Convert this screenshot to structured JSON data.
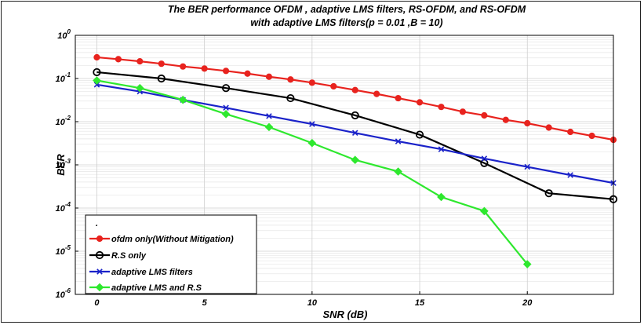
{
  "chart_data": {
    "type": "line",
    "title": [
      "The BER performance OFDM , adaptive LMS filters, RS-OFDM, and RS-OFDM",
      "with adaptive LMS filters(p = 0.01 ,B = 10)"
    ],
    "xlabel": "SNR (dB)",
    "ylabel": "BER",
    "xlim": [
      -1,
      24
    ],
    "ylim": [
      1e-06,
      1
    ],
    "yscale": "log",
    "grid": true,
    "legend_position": "lower-left",
    "xticks": [
      0,
      5,
      10,
      15,
      20
    ],
    "yticks": [
      {
        "base": "10",
        "exp": "0",
        "value": 1
      },
      {
        "base": "10",
        "exp": "-1",
        "value": 0.1
      },
      {
        "base": "10",
        "exp": "-2",
        "value": 0.01
      },
      {
        "base": "10",
        "exp": "-3",
        "value": 0.001
      },
      {
        "base": "10",
        "exp": "-4",
        "value": 0.0001
      },
      {
        "base": "10",
        "exp": "-5",
        "value": 1e-05
      },
      {
        "base": "10",
        "exp": "-6",
        "value": 1e-06
      }
    ],
    "series": [
      {
        "name": "ofdm only(Without Mitigation)",
        "color": "#e8231e",
        "marker": "dot",
        "x": [
          0,
          1,
          2,
          3,
          4,
          5,
          6,
          7,
          8,
          9,
          10,
          11,
          12,
          13,
          14,
          15,
          16,
          17,
          18,
          19,
          20,
          21,
          22,
          23,
          24
        ],
        "y": [
          0.31,
          0.28,
          0.25,
          0.22,
          0.19,
          0.17,
          0.15,
          0.13,
          0.11,
          0.095,
          0.08,
          0.066,
          0.054,
          0.044,
          0.035,
          0.028,
          0.022,
          0.017,
          0.014,
          0.011,
          0.0092,
          0.0073,
          0.0058,
          0.0047,
          0.0038
        ]
      },
      {
        "name": "R.S only",
        "color": "#000000",
        "marker": "circle",
        "x": [
          0,
          3,
          6,
          9,
          12,
          15,
          18,
          21,
          24
        ],
        "y": [
          0.14,
          0.1,
          0.06,
          0.035,
          0.014,
          0.005,
          0.0011,
          0.00022,
          0.00016
        ]
      },
      {
        "name": "adaptive LMS filters",
        "color": "#1a22c9",
        "marker": "x",
        "x": [
          0,
          2,
          4,
          6,
          8,
          10,
          12,
          14,
          16,
          18,
          20,
          22,
          24
        ],
        "y": [
          0.072,
          0.05,
          0.032,
          0.021,
          0.0135,
          0.0088,
          0.0055,
          0.0035,
          0.0023,
          0.0014,
          0.0009,
          0.00058,
          0.00038
        ]
      },
      {
        "name": "adaptive LMS and R.S",
        "color": "#2ee82e",
        "marker": "diamond",
        "x": [
          0,
          2,
          4,
          6,
          8,
          10,
          12,
          14,
          16,
          18,
          20
        ],
        "y": [
          0.09,
          0.06,
          0.032,
          0.015,
          0.0075,
          0.0032,
          0.0013,
          0.0007,
          0.00018,
          8.5e-05,
          5e-06
        ]
      }
    ]
  }
}
